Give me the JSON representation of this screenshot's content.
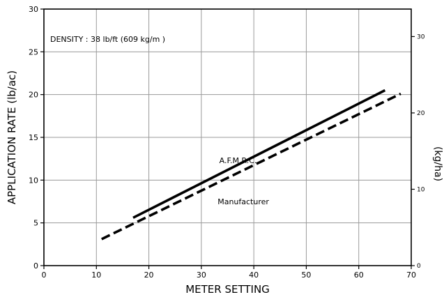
{
  "chart_data": {
    "type": "line",
    "xlabel": "METER SETTING",
    "ylabel": "APPLICATION RATE  (lb/ac)",
    "y2label": "(kg/ha)",
    "xlim": [
      0,
      70
    ],
    "ylim": [
      0,
      30
    ],
    "y2lim": [
      0,
      33.6
    ],
    "x_ticks": [
      0,
      10,
      20,
      30,
      40,
      50,
      60,
      70
    ],
    "y_ticks": [
      0,
      5,
      10,
      15,
      20,
      25,
      30
    ],
    "y2_ticks": [
      0,
      10,
      20,
      30
    ],
    "grid": true,
    "annotation": "DENSITY  :  38  lb/ft  (609  kg/m  )",
    "series": [
      {
        "name": "A.F.M.R.C.",
        "style": "solid",
        "x": [
          17,
          65
        ],
        "y": [
          5.6,
          20.5
        ],
        "label_at": [
          37,
          12.3
        ]
      },
      {
        "name": "Manufacturer",
        "style": "dashed",
        "x": [
          11,
          68
        ],
        "y": [
          3.1,
          20.1
        ],
        "label_at": [
          38,
          7.5
        ]
      }
    ],
    "colors": {
      "line": "#000000",
      "grid": "#9a9a9a",
      "axis": "#000000"
    }
  }
}
